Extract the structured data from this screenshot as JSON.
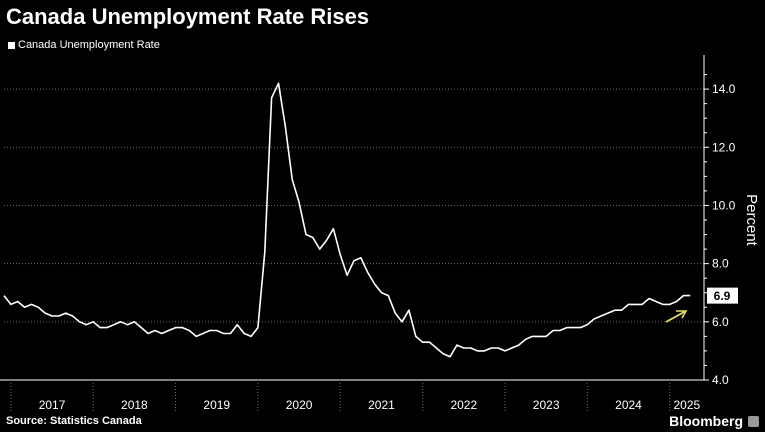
{
  "title": "Canada Unemployment Rate Rises",
  "legend": {
    "label": "Canada Unemployment Rate"
  },
  "source": "Source: Statistics Canada",
  "brand": "Bloomberg",
  "colors": {
    "background": "#000000",
    "line": "#ffffff",
    "grid": "#6b6b6b",
    "arrow": "#f0e06a"
  },
  "chart_data": {
    "type": "line",
    "title": "Canada Unemployment Rate Rises",
    "ylabel": "Percent",
    "xlabel": "",
    "ylim": [
      4.0,
      15.0
    ],
    "y_ticks": [
      "4.0",
      "6.0",
      "8.0",
      "10.0",
      "12.0",
      "14.0"
    ],
    "x_tick_labels": [
      "2017",
      "2018",
      "2019",
      "2020",
      "2021",
      "2022",
      "2023",
      "2024",
      "2025"
    ],
    "x_range": [
      "2017-01",
      "2025-05"
    ],
    "grid": "horizontal dotted",
    "legend_position": "top-left",
    "last_value_label": "6.9",
    "series": [
      {
        "name": "Canada Unemployment Rate",
        "x": [
          "2016-12",
          "2017-01",
          "2017-02",
          "2017-03",
          "2017-04",
          "2017-05",
          "2017-06",
          "2017-07",
          "2017-08",
          "2017-09",
          "2017-10",
          "2017-11",
          "2017-12",
          "2018-01",
          "2018-02",
          "2018-03",
          "2018-04",
          "2018-05",
          "2018-06",
          "2018-07",
          "2018-08",
          "2018-09",
          "2018-10",
          "2018-11",
          "2018-12",
          "2019-01",
          "2019-02",
          "2019-03",
          "2019-04",
          "2019-05",
          "2019-06",
          "2019-07",
          "2019-08",
          "2019-09",
          "2019-10",
          "2019-11",
          "2019-12",
          "2020-01",
          "2020-02",
          "2020-03",
          "2020-04",
          "2020-05",
          "2020-06",
          "2020-07",
          "2020-08",
          "2020-09",
          "2020-10",
          "2020-11",
          "2020-12",
          "2021-01",
          "2021-02",
          "2021-03",
          "2021-04",
          "2021-05",
          "2021-06",
          "2021-07",
          "2021-08",
          "2021-09",
          "2021-10",
          "2021-11",
          "2021-12",
          "2022-01",
          "2022-02",
          "2022-03",
          "2022-04",
          "2022-05",
          "2022-06",
          "2022-07",
          "2022-08",
          "2022-09",
          "2022-10",
          "2022-11",
          "2022-12",
          "2023-01",
          "2023-02",
          "2023-03",
          "2023-04",
          "2023-05",
          "2023-06",
          "2023-07",
          "2023-08",
          "2023-09",
          "2023-10",
          "2023-11",
          "2023-12",
          "2024-01",
          "2024-02",
          "2024-03",
          "2024-04",
          "2024-05",
          "2024-06",
          "2024-07",
          "2024-08",
          "2024-09",
          "2024-10",
          "2024-11",
          "2024-12",
          "2025-01",
          "2025-02",
          "2025-03",
          "2025-04"
        ],
        "values": [
          6.9,
          6.6,
          6.7,
          6.5,
          6.6,
          6.5,
          6.3,
          6.2,
          6.2,
          6.3,
          6.2,
          6.0,
          5.9,
          6.0,
          5.8,
          5.8,
          5.9,
          6.0,
          5.9,
          6.0,
          5.8,
          5.6,
          5.7,
          5.6,
          5.7,
          5.8,
          5.8,
          5.7,
          5.5,
          5.6,
          5.7,
          5.7,
          5.6,
          5.6,
          5.9,
          5.6,
          5.5,
          5.8,
          8.4,
          13.7,
          14.2,
          12.7,
          10.9,
          10.1,
          9.0,
          8.9,
          8.5,
          8.8,
          9.2,
          8.3,
          7.6,
          8.1,
          8.2,
          7.7,
          7.3,
          7.0,
          6.9,
          6.3,
          6.0,
          6.4,
          5.5,
          5.3,
          5.3,
          5.1,
          4.9,
          4.8,
          5.2,
          5.1,
          5.1,
          5.0,
          5.0,
          5.1,
          5.1,
          5.0,
          5.1,
          5.2,
          5.4,
          5.5,
          5.5,
          5.5,
          5.7,
          5.7,
          5.8,
          5.8,
          5.8,
          5.9,
          6.1,
          6.2,
          6.3,
          6.4,
          6.4,
          6.6,
          6.6,
          6.6,
          6.8,
          6.7,
          6.6,
          6.6,
          6.7,
          6.9,
          6.9
        ]
      }
    ]
  }
}
